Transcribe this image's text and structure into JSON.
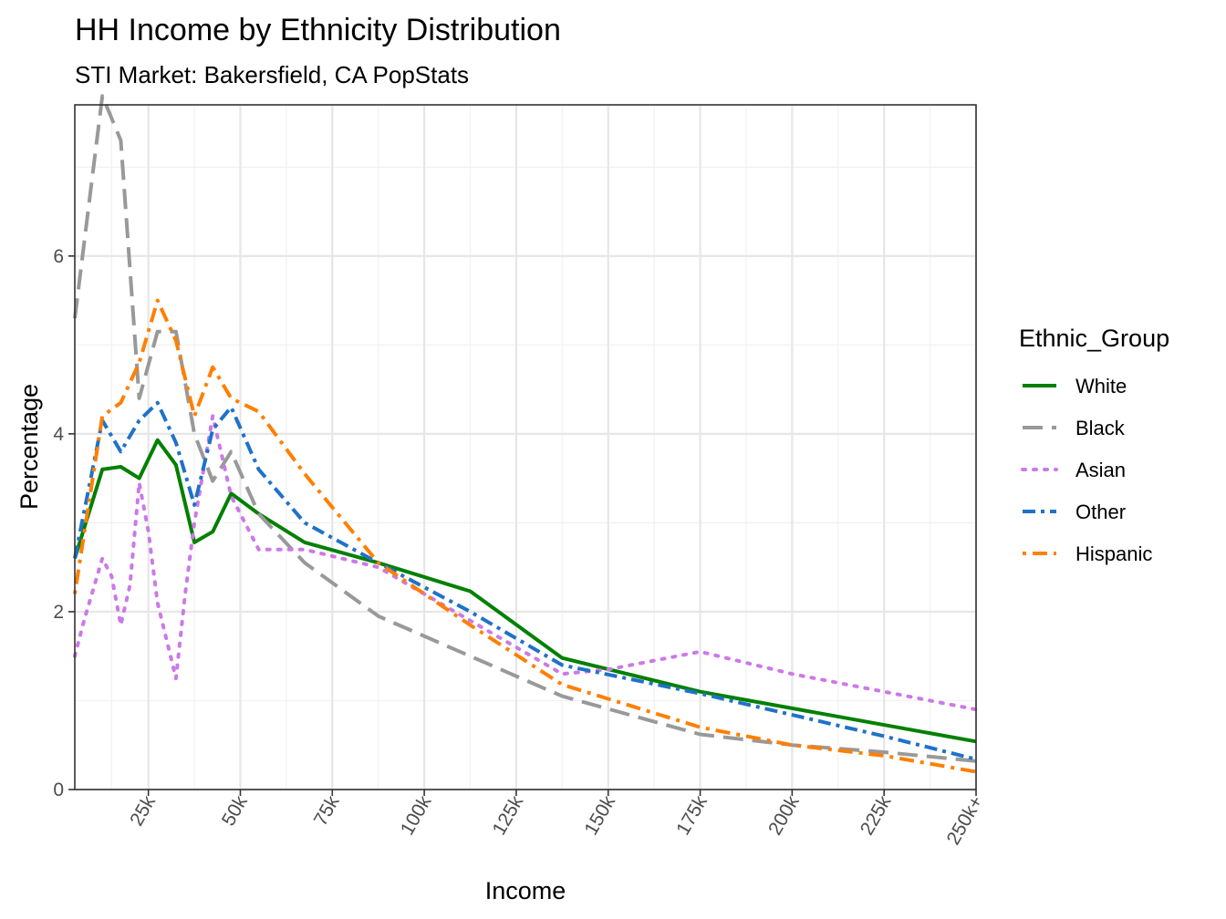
{
  "chart_data": {
    "type": "line",
    "title": "HH Income by Ethnicity Distribution",
    "subtitle": "STI Market: Bakersfield, CA PopStats",
    "xlabel": "Income",
    "ylabel": "Percentage",
    "xlim": [
      5,
      250
    ],
    "ylim": [
      0,
      7.7
    ],
    "x_ticks": [
      {
        "value": 25,
        "label": "25k"
      },
      {
        "value": 50,
        "label": "50k"
      },
      {
        "value": 75,
        "label": "75k"
      },
      {
        "value": 100,
        "label": "100k"
      },
      {
        "value": 125,
        "label": "125k"
      },
      {
        "value": 150,
        "label": "150k"
      },
      {
        "value": 175,
        "label": "175k"
      },
      {
        "value": 200,
        "label": "200k"
      },
      {
        "value": 225,
        "label": "225k"
      },
      {
        "value": 250,
        "label": "250k+"
      }
    ],
    "y_ticks": [
      {
        "value": 0,
        "label": "0"
      },
      {
        "value": 2,
        "label": "2"
      },
      {
        "value": 4,
        "label": "4"
      },
      {
        "value": 6,
        "label": "6"
      }
    ],
    "grid": true,
    "legend_title": "Ethnic_Group",
    "legend_position": "right",
    "series": [
      {
        "name": "White",
        "color": "#008000",
        "dash": "solid",
        "points": [
          [
            5,
            2.6
          ],
          [
            12.5,
            3.6
          ],
          [
            17.5,
            3.63
          ],
          [
            22.5,
            3.5
          ],
          [
            27.5,
            3.93
          ],
          [
            32.5,
            3.65
          ],
          [
            37.5,
            2.78
          ],
          [
            42.5,
            2.9
          ],
          [
            47.5,
            3.33
          ],
          [
            55,
            3.1
          ],
          [
            67.5,
            2.78
          ],
          [
            87.5,
            2.55
          ],
          [
            112.5,
            2.23
          ],
          [
            137.5,
            1.48
          ],
          [
            175,
            1.1
          ],
          [
            250,
            0.54
          ]
        ]
      },
      {
        "name": "Black",
        "color": "#999999",
        "dash": "longdash",
        "points": [
          [
            5,
            5.3
          ],
          [
            12.5,
            7.8
          ],
          [
            17.5,
            7.3
          ],
          [
            22.5,
            4.4
          ],
          [
            27.5,
            5.15
          ],
          [
            32.5,
            5.15
          ],
          [
            37.5,
            4.0
          ],
          [
            42.5,
            3.47
          ],
          [
            47.5,
            3.8
          ],
          [
            55,
            3.1
          ],
          [
            67.5,
            2.55
          ],
          [
            87.5,
            1.95
          ],
          [
            112.5,
            1.5
          ],
          [
            137.5,
            1.05
          ],
          [
            175,
            0.62
          ],
          [
            200,
            0.5
          ],
          [
            225,
            0.42
          ],
          [
            250,
            0.32
          ]
        ]
      },
      {
        "name": "Asian",
        "color": "#CC79E8",
        "dash": "dotted",
        "points": [
          [
            5,
            1.5
          ],
          [
            7.5,
            1.9
          ],
          [
            12.5,
            2.6
          ],
          [
            15,
            2.4
          ],
          [
            17.5,
            1.85
          ],
          [
            20,
            2.3
          ],
          [
            22.5,
            3.45
          ],
          [
            25,
            2.9
          ],
          [
            27.5,
            2.1
          ],
          [
            32.5,
            1.25
          ],
          [
            35,
            2.2
          ],
          [
            37.5,
            3.0
          ],
          [
            42.5,
            4.2
          ],
          [
            47.5,
            3.3
          ],
          [
            55,
            2.7
          ],
          [
            67.5,
            2.7
          ],
          [
            87.5,
            2.5
          ],
          [
            112.5,
            1.9
          ],
          [
            137.5,
            1.3
          ],
          [
            150,
            1.35
          ],
          [
            175,
            1.55
          ],
          [
            200,
            1.3
          ],
          [
            225,
            1.1
          ],
          [
            250,
            0.9
          ]
        ]
      },
      {
        "name": "Other",
        "color": "#1F72C8",
        "dash": "dashdot",
        "points": [
          [
            5,
            2.6
          ],
          [
            12.5,
            4.15
          ],
          [
            17.5,
            3.8
          ],
          [
            22.5,
            4.15
          ],
          [
            27.5,
            4.35
          ],
          [
            32.5,
            3.9
          ],
          [
            37.5,
            3.2
          ],
          [
            42.5,
            4.05
          ],
          [
            47.5,
            4.3
          ],
          [
            55,
            3.6
          ],
          [
            67.5,
            3.0
          ],
          [
            87.5,
            2.55
          ],
          [
            112.5,
            2.0
          ],
          [
            137.5,
            1.4
          ],
          [
            175,
            1.08
          ],
          [
            225,
            0.6
          ],
          [
            250,
            0.34
          ]
        ]
      },
      {
        "name": "Hispanic",
        "color": "#FF7F00",
        "dash": "dotdash",
        "points": [
          [
            5,
            2.2
          ],
          [
            12.5,
            4.2
          ],
          [
            17.5,
            4.35
          ],
          [
            22.5,
            4.8
          ],
          [
            27.5,
            5.5
          ],
          [
            32.5,
            5.05
          ],
          [
            37.5,
            4.2
          ],
          [
            42.5,
            4.75
          ],
          [
            47.5,
            4.4
          ],
          [
            55,
            4.25
          ],
          [
            67.5,
            3.55
          ],
          [
            87.5,
            2.55
          ],
          [
            112.5,
            1.85
          ],
          [
            137.5,
            1.18
          ],
          [
            175,
            0.7
          ],
          [
            200,
            0.5
          ],
          [
            225,
            0.38
          ],
          [
            250,
            0.2
          ]
        ]
      }
    ]
  }
}
